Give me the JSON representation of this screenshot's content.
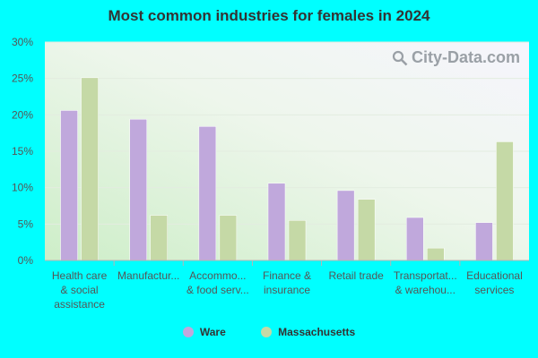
{
  "chart_data": {
    "type": "bar",
    "title": "Most common industries for females in 2024",
    "categories": [
      [
        "Health care",
        "& social",
        "assistance"
      ],
      [
        "Manufactur..."
      ],
      [
        "Accommo...",
        "& food serv..."
      ],
      [
        "Finance &",
        "insurance"
      ],
      [
        "Retail trade"
      ],
      [
        "Transportat...",
        "& warehou..."
      ],
      [
        "Educational",
        "services"
      ]
    ],
    "series": [
      {
        "name": "Ware",
        "color": "#c0a8dc",
        "values": [
          20.6,
          19.4,
          18.4,
          10.6,
          9.6,
          5.9,
          5.2
        ]
      },
      {
        "name": "Massachusetts",
        "color": "#c5d9a6",
        "values": [
          25.1,
          6.2,
          6.2,
          5.5,
          8.4,
          1.7,
          16.3
        ]
      }
    ],
    "yticks": [
      "0%",
      "5%",
      "10%",
      "15%",
      "20%",
      "25%",
      "30%"
    ],
    "ylim": [
      0,
      30
    ],
    "grid": true,
    "legend": "bottom"
  },
  "watermark": "City-Data.com"
}
